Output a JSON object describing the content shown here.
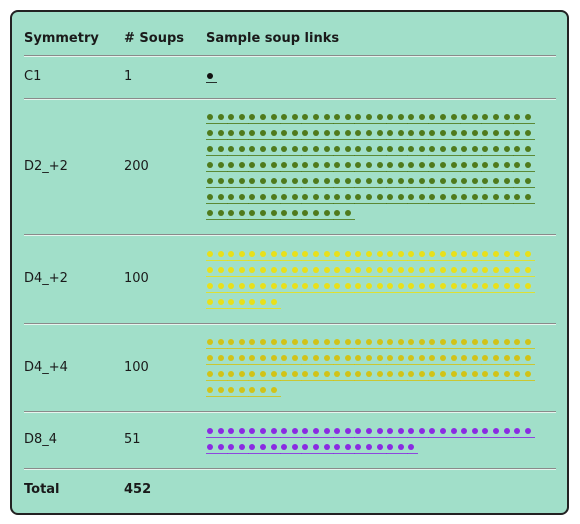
{
  "table": {
    "headers": [
      "Symmetry",
      "# Soups",
      "Sample soup links"
    ],
    "rows": [
      {
        "symmetry": "C1",
        "soups": "1",
        "link_count": 1,
        "color": "#1a1a1a",
        "per_line": 1
      },
      {
        "symmetry": "D2_+2",
        "soups": "200",
        "link_count": 200,
        "color": "#4f7a1c",
        "per_line": 31
      },
      {
        "symmetry": "D4_+2",
        "soups": "100",
        "link_count": 100,
        "color": "#e8e01a",
        "per_line": 31
      },
      {
        "symmetry": "D4_+4",
        "soups": "100",
        "link_count": 100,
        "color": "#d1c318",
        "per_line": 31
      },
      {
        "symmetry": "D8_4",
        "soups": "51",
        "link_count": 51,
        "color": "#8a2be2",
        "per_line": 31
      }
    ],
    "total": {
      "label": "Total",
      "soups": "452"
    }
  }
}
